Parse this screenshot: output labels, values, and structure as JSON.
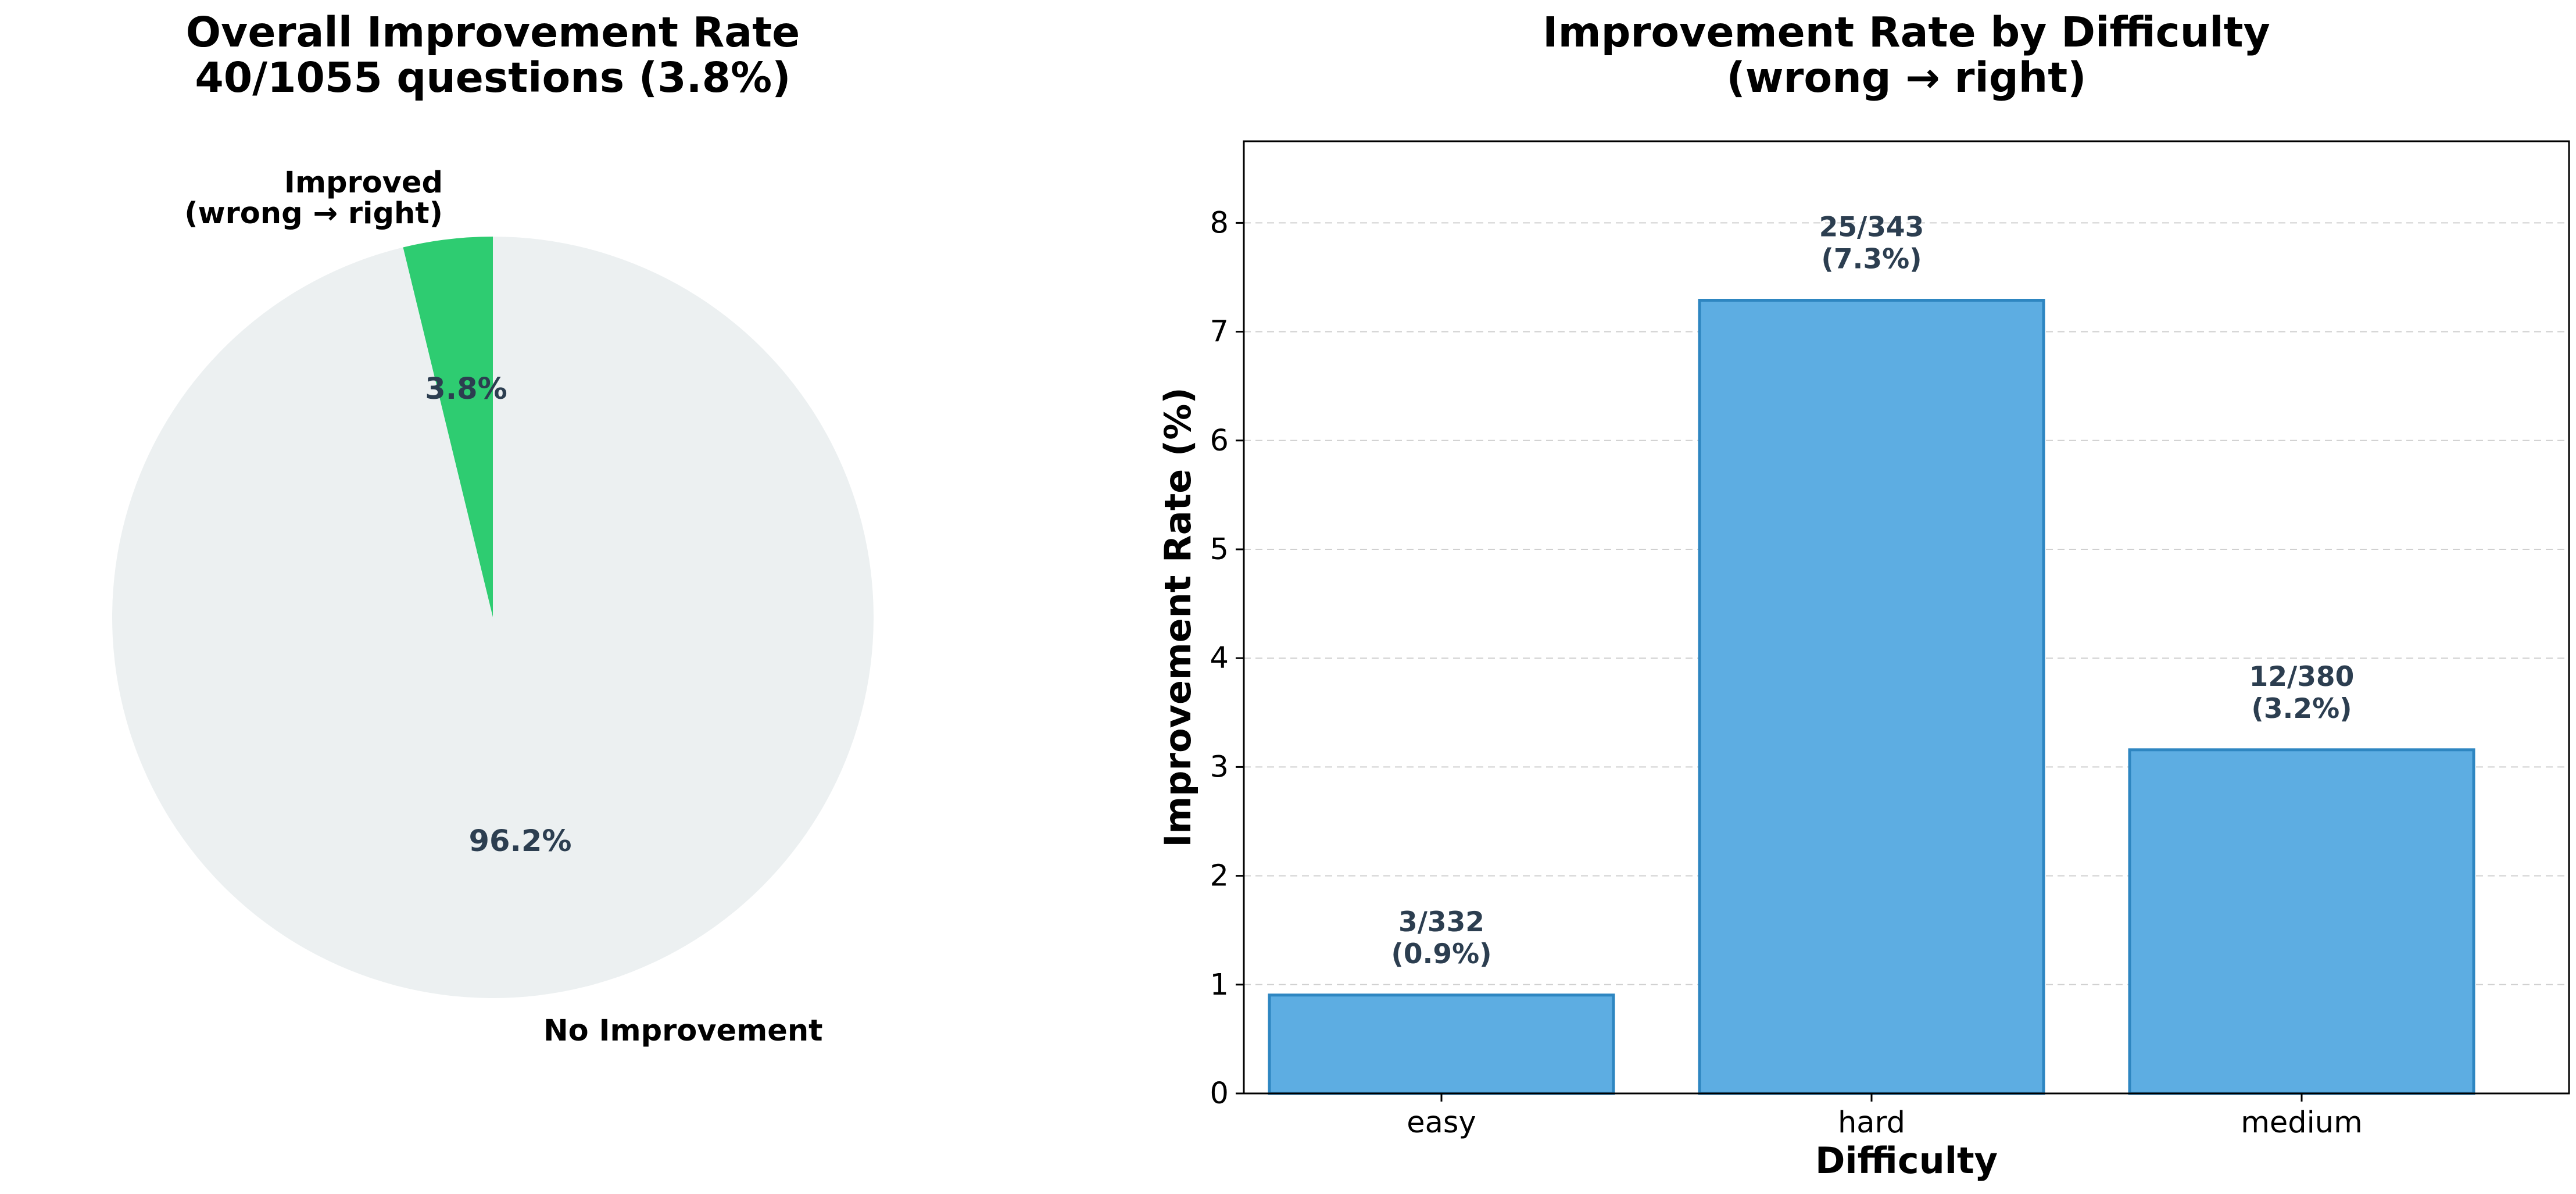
{
  "chart_data": [
    {
      "type": "pie",
      "title": "Overall Improvement Rate",
      "subtitle": "40/1055 questions (3.8%)",
      "slices": [
        {
          "name": "Improved",
          "label_line2": "(wrong → right)",
          "value": 40,
          "percent_label": "3.8%",
          "color": "#2ecc71"
        },
        {
          "name": "No Improvement",
          "value": 1015,
          "percent_label": "96.2%",
          "color": "#ecf0f1"
        }
      ]
    },
    {
      "type": "bar",
      "title": "Improvement Rate by Difficulty",
      "subtitle": "(wrong → right)",
      "xlabel": "Difficulty",
      "ylabel": "Improvement Rate (%)",
      "categories": [
        "easy",
        "hard",
        "medium"
      ],
      "values": [
        0.904,
        7.289,
        3.158
      ],
      "bar_labels": [
        {
          "count": "3/332",
          "pct": "(0.9%)"
        },
        {
          "count": "25/343",
          "pct": "(7.3%)"
        },
        {
          "count": "12/380",
          "pct": "(3.2%)"
        }
      ],
      "ylim": [
        0,
        8.75
      ],
      "yticks": [
        0,
        1,
        2,
        3,
        4,
        5,
        6,
        7,
        8
      ],
      "grid": "y-dashed",
      "bar_color": "#5dade2",
      "bar_edge_color": "#2e86c1"
    }
  ]
}
